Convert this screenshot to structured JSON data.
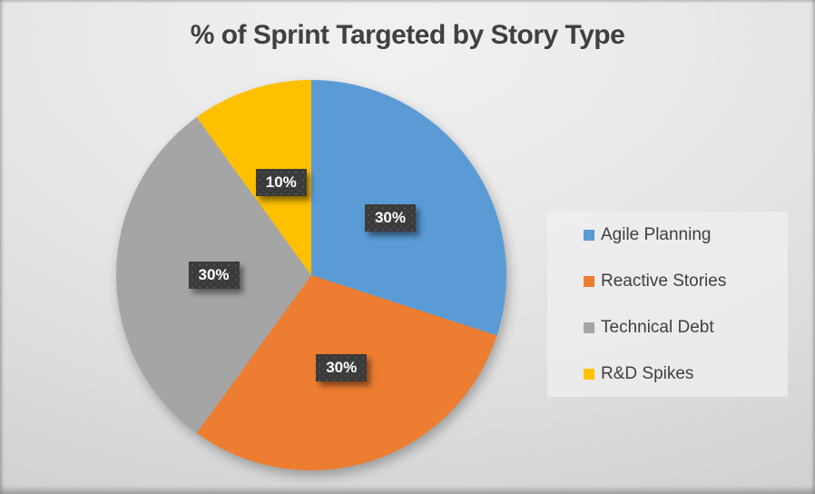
{
  "chart_data": {
    "type": "pie",
    "title": "% of Sprint Targeted by Story Type",
    "categories": [
      "Agile Planning",
      "Reactive Stories",
      "Technical Debt",
      "R&D Spikes"
    ],
    "values": [
      30,
      30,
      30,
      10
    ],
    "labels": [
      "30%",
      "30%",
      "30%",
      "10%"
    ],
    "colors": [
      "#5B9BD5",
      "#ED7D31",
      "#A5A5A5",
      "#FFC000"
    ],
    "start_angle_deg": 0,
    "direction": "clockwise",
    "label_position": "inside-half-radius",
    "legend_position": "right",
    "title_color": "#404040",
    "label_text_color": "#FFFFFF",
    "label_box_color": "#3A3A3A"
  },
  "legend": {
    "items": [
      {
        "label": "Agile Planning",
        "color": "#5B9BD5"
      },
      {
        "label": "Reactive Stories",
        "color": "#ED7D31"
      },
      {
        "label": "Technical Debt",
        "color": "#A5A5A5"
      },
      {
        "label": "R&D Spikes",
        "color": "#FFC000"
      }
    ]
  }
}
